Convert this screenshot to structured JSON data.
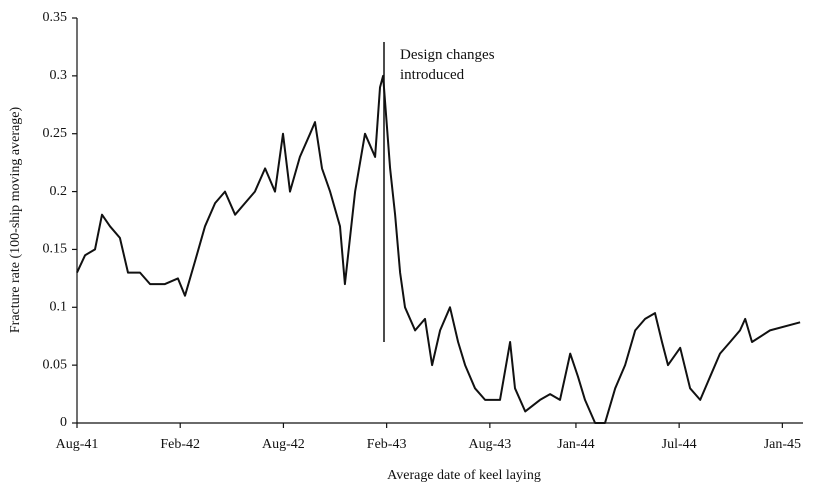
{
  "chart_data": {
    "type": "line",
    "xlabel": "Average date of keel laying",
    "ylabel": "Fracture rate (100-ship moving average)",
    "annotation": "Design changes introduced",
    "color": "#111111",
    "x": [
      1941.583,
      1941.622,
      1941.67,
      1941.704,
      1941.743,
      1941.791,
      1941.83,
      1941.888,
      1941.937,
      1942.009,
      1942.072,
      1942.106,
      1942.155,
      1942.203,
      1942.252,
      1942.3,
      1942.349,
      1942.397,
      1942.445,
      1942.494,
      1942.542,
      1942.581,
      1942.615,
      1942.663,
      1942.712,
      1942.736,
      1942.77,
      1942.809,
      1942.857,
      1942.881,
      1942.93,
      1942.978,
      1943.027,
      1943.051,
      1943.066,
      1943.1,
      1943.124,
      1943.148,
      1943.172,
      1943.221,
      1943.269,
      1943.303,
      1943.342,
      1943.39,
      1943.429,
      1943.463,
      1943.511,
      1943.56,
      1943.632,
      1943.681,
      1943.705,
      1943.754,
      1943.826,
      1943.875,
      1943.923,
      1943.972,
      1944.01,
      1944.044,
      1944.093,
      1944.141,
      1944.19,
      1944.238,
      1944.287,
      1944.335,
      1944.383,
      1944.417,
      1944.446,
      1944.505,
      1944.553,
      1944.602,
      1944.65,
      1944.698,
      1944.747,
      1944.795,
      1944.82,
      1944.853,
      1944.94,
      1945.086
    ],
    "values": [
      0.13,
      0.145,
      0.15,
      0.18,
      0.17,
      0.16,
      0.13,
      0.13,
      0.12,
      0.12,
      0.125,
      0.11,
      0.14,
      0.17,
      0.19,
      0.2,
      0.18,
      0.19,
      0.2,
      0.22,
      0.2,
      0.25,
      0.2,
      0.23,
      0.25,
      0.26,
      0.22,
      0.2,
      0.17,
      0.12,
      0.2,
      0.25,
      0.23,
      0.29,
      0.3,
      0.22,
      0.18,
      0.13,
      0.1,
      0.08,
      0.09,
      0.05,
      0.08,
      0.1,
      0.07,
      0.05,
      0.03,
      0.02,
      0.02,
      0.07,
      0.03,
      0.01,
      0.02,
      0.025,
      0.02,
      0.06,
      0.04,
      0.02,
      0.0,
      0.0,
      0.03,
      0.05,
      0.08,
      0.09,
      0.095,
      0.07,
      0.05,
      0.065,
      0.03,
      0.02,
      0.04,
      0.06,
      0.07,
      0.08,
      0.09,
      0.07,
      0.08,
      0.087
    ],
    "xlim": [
      1941.583,
      1945.1
    ],
    "xticks": [
      {
        "value": 1941.583,
        "label": "Aug-41"
      },
      {
        "value": 1942.083,
        "label": "Feb-42"
      },
      {
        "value": 1942.583,
        "label": "Aug-42"
      },
      {
        "value": 1943.083,
        "label": "Feb-43"
      },
      {
        "value": 1943.583,
        "label": "Aug-43"
      },
      {
        "value": 1944.0,
        "label": "Jan-44"
      },
      {
        "value": 1944.5,
        "label": "Jul-44"
      },
      {
        "value": 1945.0,
        "label": "Jan-45"
      }
    ],
    "ylim": [
      0,
      0.35
    ],
    "yticks": [
      0,
      0.05,
      0.1,
      0.15,
      0.2,
      0.25,
      0.3,
      0.35
    ],
    "grid": false
  }
}
